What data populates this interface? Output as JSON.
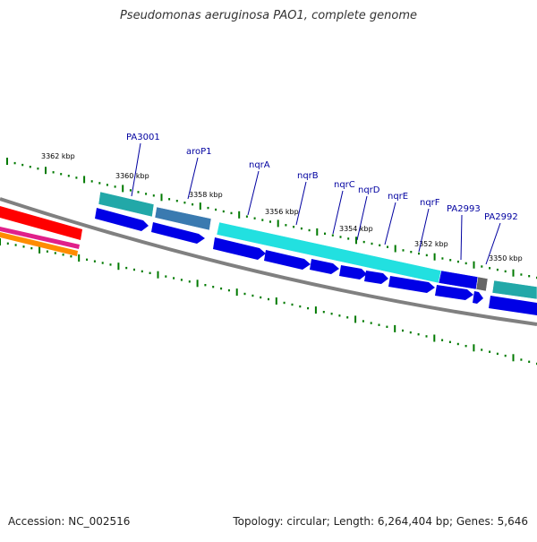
{
  "title": "Pseudomonas aeruginosa PAO1, complete genome",
  "accession": "Accession: NC_002516",
  "summary": "Topology: circular; Length: 6,264,404 bp; Genes: 5,646",
  "colors": {
    "cds": "#0000e6",
    "gene_cyan": "#22e0e0",
    "gene_teal": "#22a8a8",
    "gene_steel": "#3a7ab0",
    "gene_gray": "#666666",
    "backbone": "#808080",
    "tick": "#007a00",
    "label": "#0000a0",
    "red": "#ff0000",
    "magenta": "#e0208a",
    "orange": "#ff8c00"
  },
  "scale_labels": [
    "3362 kbp",
    "3360 kbp",
    "3358 kbp",
    "3356 kbp",
    "3354 kbp",
    "3352 kbp",
    "3350 kbp"
  ],
  "genes": [
    "PA3001",
    "aroP1",
    "nqrA",
    "nqrB",
    "nqrC",
    "nqrD",
    "nqrE",
    "nqrF",
    "PA2993",
    "PA2992"
  ]
}
